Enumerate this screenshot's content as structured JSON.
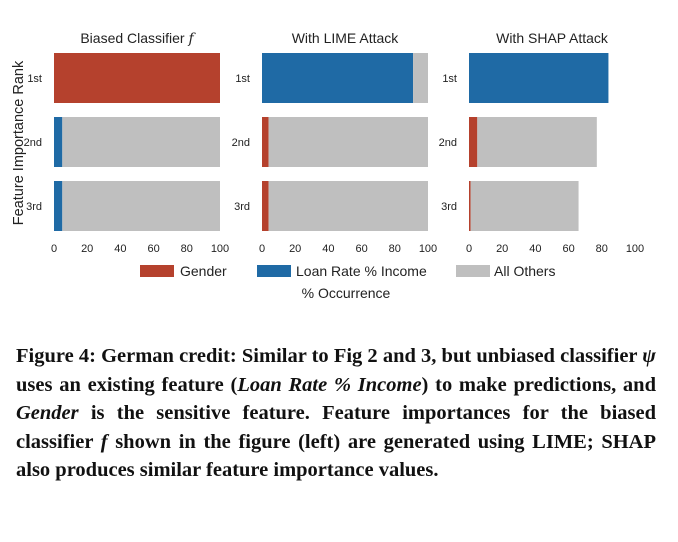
{
  "chart_data": {
    "type": "bar",
    "orientation": "horizontal",
    "stacked": true,
    "y_label": "Feature Importance Rank",
    "x_label": "% Occurrence",
    "ranks": [
      "1st",
      "2nd",
      "3rd"
    ],
    "xlim": [
      0,
      100
    ],
    "x_ticks": [
      "0",
      "20",
      "40",
      "60",
      "80",
      "100"
    ],
    "legend_position": "bottom-center",
    "grid": false,
    "legend": [
      {
        "name": "Gender",
        "color": "#b5412d"
      },
      {
        "name": "Loan Rate % Income",
        "color": "#1f6aa5"
      },
      {
        "name": "All Others",
        "color": "#bfbfbf"
      }
    ],
    "panels": [
      {
        "title": "Biased Classifier f",
        "title_prefix": "Biased Classifier ",
        "title_symbol": "f",
        "bars": [
          {
            "rank": "1st",
            "segments": [
              {
                "series": "Gender",
                "value": 100
              }
            ]
          },
          {
            "rank": "2nd",
            "segments": [
              {
                "series": "Loan Rate % Income",
                "value": 5
              },
              {
                "series": "All Others",
                "value": 95
              }
            ]
          },
          {
            "rank": "3rd",
            "segments": [
              {
                "series": "Loan Rate % Income",
                "value": 5
              },
              {
                "series": "All Others",
                "value": 95
              }
            ]
          }
        ]
      },
      {
        "title": "With LIME Attack",
        "title_prefix": "With LIME Attack",
        "title_symbol": "",
        "bars": [
          {
            "rank": "1st",
            "segments": [
              {
                "series": "Loan Rate % Income",
                "value": 91
              },
              {
                "series": "All Others",
                "value": 9
              }
            ]
          },
          {
            "rank": "2nd",
            "segments": [
              {
                "series": "Gender",
                "value": 4
              },
              {
                "series": "All Others",
                "value": 96
              }
            ]
          },
          {
            "rank": "3rd",
            "segments": [
              {
                "series": "Gender",
                "value": 4
              },
              {
                "series": "All Others",
                "value": 96
              }
            ]
          }
        ]
      },
      {
        "title": "With SHAP Attack",
        "title_prefix": "With SHAP Attack",
        "title_symbol": "",
        "bars": [
          {
            "rank": "1st",
            "segments": [
              {
                "series": "Loan Rate % Income",
                "value": 84
              }
            ]
          },
          {
            "rank": "2nd",
            "segments": [
              {
                "series": "Gender",
                "value": 5
              },
              {
                "series": "All Others",
                "value": 72
              }
            ]
          },
          {
            "rank": "3rd",
            "segments": [
              {
                "series": "Gender",
                "value": 1
              },
              {
                "series": "All Others",
                "value": 65
              }
            ]
          }
        ]
      }
    ]
  },
  "caption": {
    "p1": "Figure 4: German credit: Similar to Fig 2 and 3, but unbiased classifier ",
    "psi": "ψ",
    "p2": " uses an existing feature (",
    "em1": "Loan Rate % Income",
    "p3": ") to make predictions, and ",
    "em2": "Gender",
    "p4": " is the sensitive feature. Feature importances for the biased classifier ",
    "em3": "f",
    "p5": " shown in the figure (left) are generated using LIME; SHAP also produces similar feature importance values."
  }
}
